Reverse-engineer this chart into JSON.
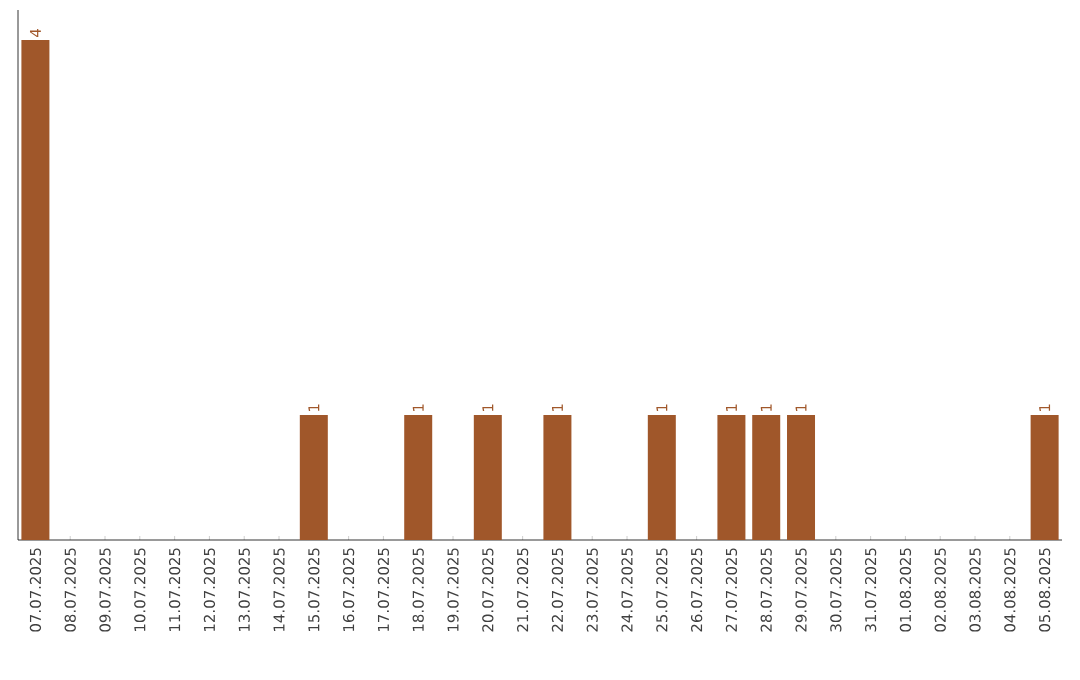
{
  "chart_data": {
    "type": "bar",
    "categories": [
      "07.07.2025",
      "08.07.2025",
      "09.07.2025",
      "10.07.2025",
      "11.07.2025",
      "12.07.2025",
      "13.07.2025",
      "14.07.2025",
      "15.07.2025",
      "16.07.2025",
      "17.07.2025",
      "18.07.2025",
      "19.07.2025",
      "20.07.2025",
      "21.07.2025",
      "22.07.2025",
      "23.07.2025",
      "24.07.2025",
      "25.07.2025",
      "26.07.2025",
      "27.07.2025",
      "28.07.2025",
      "29.07.2025",
      "30.07.2025",
      "31.07.2025",
      "01.08.2025",
      "02.08.2025",
      "03.08.2025",
      "04.08.2025",
      "05.08.2025"
    ],
    "values": [
      4,
      0,
      0,
      0,
      0,
      0,
      0,
      0,
      1,
      0,
      0,
      1,
      0,
      1,
      0,
      1,
      0,
      0,
      1,
      0,
      1,
      1,
      1,
      0,
      0,
      0,
      0,
      0,
      0,
      1
    ],
    "value_labels": [
      "4",
      null,
      null,
      null,
      null,
      null,
      null,
      null,
      "1",
      null,
      null,
      "1",
      null,
      "1",
      null,
      "1",
      null,
      null,
      "1",
      null,
      "1",
      "1",
      "1",
      null,
      null,
      null,
      null,
      null,
      null,
      "1"
    ],
    "color": "#a0572a",
    "tick_labels": "x"
  }
}
